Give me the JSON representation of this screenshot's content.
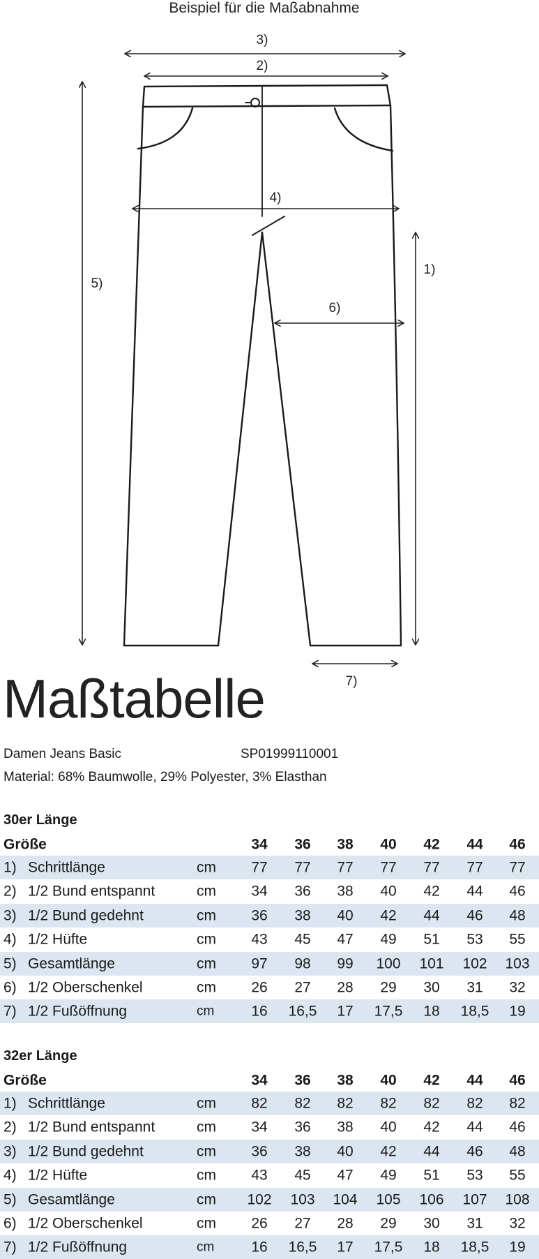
{
  "drawing": {
    "title": "Beispiel für die Maßabnahme",
    "labels": {
      "m1": "1)",
      "m2": "2)",
      "m3": "3)",
      "m4": "4)",
      "m5": "5)",
      "m6": "6)",
      "m7": "7)"
    }
  },
  "header": {
    "title": "Maßtabelle",
    "product": "Damen Jeans Basic",
    "article_number": "SP01999110001",
    "material": "Material: 68% Baumwolle, 29% Polyester, 3% Elasthan"
  },
  "shade_color": "#dce6f1",
  "tables": [
    {
      "title": "30er Länge",
      "size_label": "Größe",
      "sizes": [
        "34",
        "36",
        "38",
        "40",
        "42",
        "44",
        "46"
      ],
      "rows": [
        {
          "num": "1)",
          "label": "Schrittlänge",
          "unit": "cm",
          "values": [
            "77",
            "77",
            "77",
            "77",
            "77",
            "77",
            "77"
          ]
        },
        {
          "num": "2)",
          "label": "1/2 Bund entspannt",
          "unit": "cm",
          "values": [
            "34",
            "36",
            "38",
            "40",
            "42",
            "44",
            "46"
          ]
        },
        {
          "num": "3)",
          "label": "1/2 Bund gedehnt",
          "unit": "cm",
          "values": [
            "36",
            "38",
            "40",
            "42",
            "44",
            "46",
            "48"
          ]
        },
        {
          "num": "4)",
          "label": "1/2 Hüfte",
          "unit": "cm",
          "values": [
            "43",
            "45",
            "47",
            "49",
            "51",
            "53",
            "55"
          ]
        },
        {
          "num": "5)",
          "label": "Gesamtlänge",
          "unit": "cm",
          "values": [
            "97",
            "98",
            "99",
            "100",
            "101",
            "102",
            "103"
          ]
        },
        {
          "num": "6)",
          "label": "1/2 Oberschenkel",
          "unit": "cm",
          "values": [
            "26",
            "27",
            "28",
            "29",
            "30",
            "31",
            "32"
          ]
        },
        {
          "num": "7)",
          "label": "1/2 Fußöffnung",
          "unit": "cm",
          "values": [
            "16",
            "16,5",
            "17",
            "17,5",
            "18",
            "18,5",
            "19"
          ]
        }
      ]
    },
    {
      "title": "32er Länge",
      "size_label": "Größe",
      "sizes": [
        "34",
        "36",
        "38",
        "40",
        "42",
        "44",
        "46"
      ],
      "rows": [
        {
          "num": "1)",
          "label": "Schrittlänge",
          "unit": "cm",
          "values": [
            "82",
            "82",
            "82",
            "82",
            "82",
            "82",
            "82"
          ]
        },
        {
          "num": "2)",
          "label": "1/2 Bund entspannt",
          "unit": "cm",
          "values": [
            "34",
            "36",
            "38",
            "40",
            "42",
            "44",
            "46"
          ]
        },
        {
          "num": "3)",
          "label": "1/2 Bund gedehnt",
          "unit": "cm",
          "values": [
            "36",
            "38",
            "40",
            "42",
            "44",
            "46",
            "48"
          ]
        },
        {
          "num": "4)",
          "label": "1/2 Hüfte",
          "unit": "cm",
          "values": [
            "43",
            "45",
            "47",
            "49",
            "51",
            "53",
            "55"
          ]
        },
        {
          "num": "5)",
          "label": "Gesamtlänge",
          "unit": "cm",
          "values": [
            "102",
            "103",
            "104",
            "105",
            "106",
            "107",
            "108"
          ]
        },
        {
          "num": "6)",
          "label": "1/2 Oberschenkel",
          "unit": "cm",
          "values": [
            "26",
            "27",
            "28",
            "29",
            "30",
            "31",
            "32"
          ]
        },
        {
          "num": "7)",
          "label": "1/2 Fußöffnung",
          "unit": "cm",
          "values": [
            "16",
            "16,5",
            "17",
            "17,5",
            "18",
            "18,5",
            "19"
          ]
        }
      ]
    }
  ]
}
